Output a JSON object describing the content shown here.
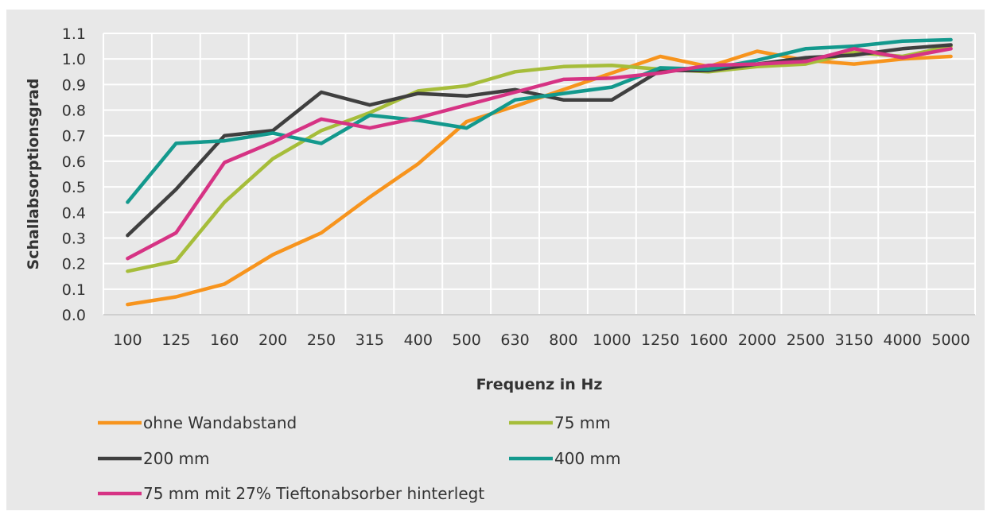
{
  "chart_data": {
    "type": "line",
    "title": "",
    "xlabel": "Frequenz in Hz",
    "ylabel": "Schallabsorptionsgrad",
    "ylim": [
      0,
      1.1
    ],
    "y_ticks": [
      "0.0",
      "0.1",
      "0.2",
      "0.3",
      "0.4",
      "0.5",
      "0.6",
      "0.7",
      "0.8",
      "0.9",
      "1.0",
      "1.1"
    ],
    "categories": [
      "100",
      "125",
      "160",
      "200",
      "250",
      "315",
      "400",
      "500",
      "630",
      "800",
      "1000",
      "1250",
      "1600",
      "2000",
      "2500",
      "3150",
      "4000",
      "5000"
    ],
    "grid": true,
    "legend_position": "bottom",
    "series": [
      {
        "name": "ohne Wandabstand",
        "color": "#f7941d",
        "values": [
          0.04,
          0.07,
          0.12,
          0.235,
          0.32,
          0.46,
          0.59,
          0.755,
          0.815,
          0.88,
          0.945,
          1.01,
          0.97,
          1.03,
          0.995,
          0.98,
          1.0,
          1.01
        ]
      },
      {
        "name": "75 mm",
        "color": "#a6bd3a",
        "values": [
          0.17,
          0.21,
          0.44,
          0.61,
          0.72,
          0.79,
          0.875,
          0.895,
          0.95,
          0.97,
          0.975,
          0.96,
          0.95,
          0.97,
          0.98,
          1.025,
          1.01,
          1.05
        ]
      },
      {
        "name": "200 mm",
        "color": "#3f3f3f",
        "values": [
          0.31,
          0.49,
          0.7,
          0.72,
          0.87,
          0.82,
          0.865,
          0.855,
          0.88,
          0.84,
          0.84,
          0.955,
          0.955,
          0.98,
          1.005,
          1.015,
          1.04,
          1.055
        ]
      },
      {
        "name": "400 mm",
        "color": "#13998d",
        "values": [
          0.44,
          0.67,
          0.68,
          0.71,
          0.67,
          0.78,
          0.76,
          0.73,
          0.84,
          0.865,
          0.89,
          0.965,
          0.96,
          0.995,
          1.04,
          1.05,
          1.07,
          1.075
        ]
      },
      {
        "name": "75 mm mit 27% Tieftonabsorber hinterlegt",
        "color": "#d63384",
        "values": [
          0.22,
          0.32,
          0.595,
          0.675,
          0.765,
          0.73,
          0.77,
          0.82,
          0.87,
          0.92,
          0.925,
          0.945,
          0.975,
          0.98,
          0.99,
          1.04,
          1.005,
          1.04
        ]
      }
    ]
  }
}
